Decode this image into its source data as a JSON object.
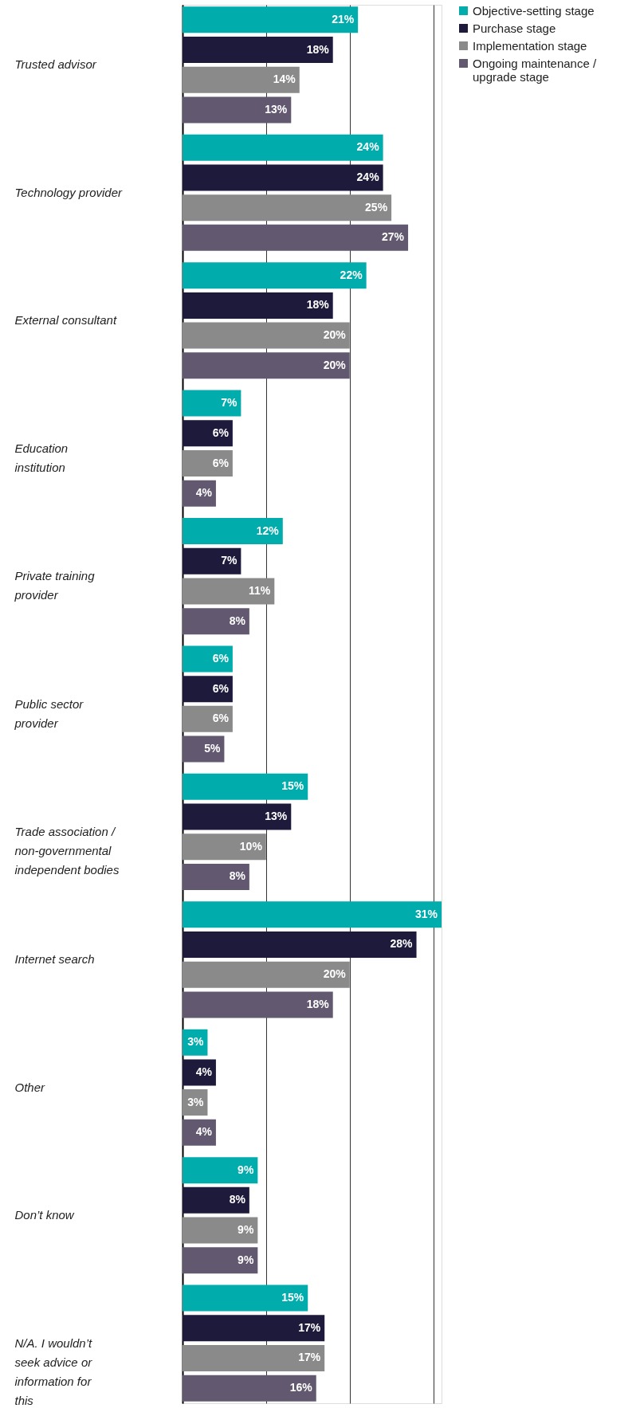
{
  "chart_data": {
    "type": "bar",
    "orientation": "horizontal",
    "categories": [
      "Trusted advisor",
      "Technology provider",
      "External consultant",
      "Education institution",
      "Private training provider",
      "Public sector provider",
      "Trade association / non-governmental independent bodies",
      "Internet search",
      "Other",
      "Don’t know",
      "N/A. I wouldn’t seek advice or information for this"
    ],
    "series": [
      {
        "name": "Objective-setting stage",
        "color": "#00acac",
        "values": [
          21,
          24,
          22,
          7,
          12,
          6,
          15,
          31,
          3,
          9,
          15
        ],
        "value_labels": [
          "21%",
          "24%",
          "22%",
          "7%",
          "12%",
          "6%",
          "15%",
          "31%",
          "3%",
          "9%",
          "15%"
        ]
      },
      {
        "name": "Purchase stage",
        "color": "#1d1a3c",
        "values": [
          18,
          24,
          18,
          6,
          7,
          6,
          13,
          28,
          4,
          8,
          17
        ],
        "value_labels": [
          "18%",
          "24%",
          "18%",
          "6%",
          "7%",
          "6%",
          "13%",
          "28%",
          "4%",
          "8%",
          "17%"
        ]
      },
      {
        "name": "Implementation stage",
        "color": "#8a8a8a",
        "values": [
          14,
          25,
          20,
          6,
          11,
          6,
          10,
          20,
          3,
          9,
          17
        ],
        "value_labels": [
          "14%",
          "25%",
          "20%",
          "6%",
          "11%",
          "6%",
          "10%",
          "20%",
          "3%",
          "9%",
          "17%"
        ]
      },
      {
        "name": "Ongoing maintenance / upgrade stage",
        "color": "#625870",
        "values": [
          13,
          27,
          20,
          4,
          8,
          5,
          8,
          18,
          4,
          9,
          16
        ],
        "value_labels": [
          "13%",
          "27%",
          "20%",
          "4%",
          "8%",
          "5%",
          "8%",
          "18%",
          "4%",
          "9%",
          "16%"
        ]
      }
    ],
    "tick_labels": "y",
    "grid": "x",
    "legend": "top right"
  }
}
